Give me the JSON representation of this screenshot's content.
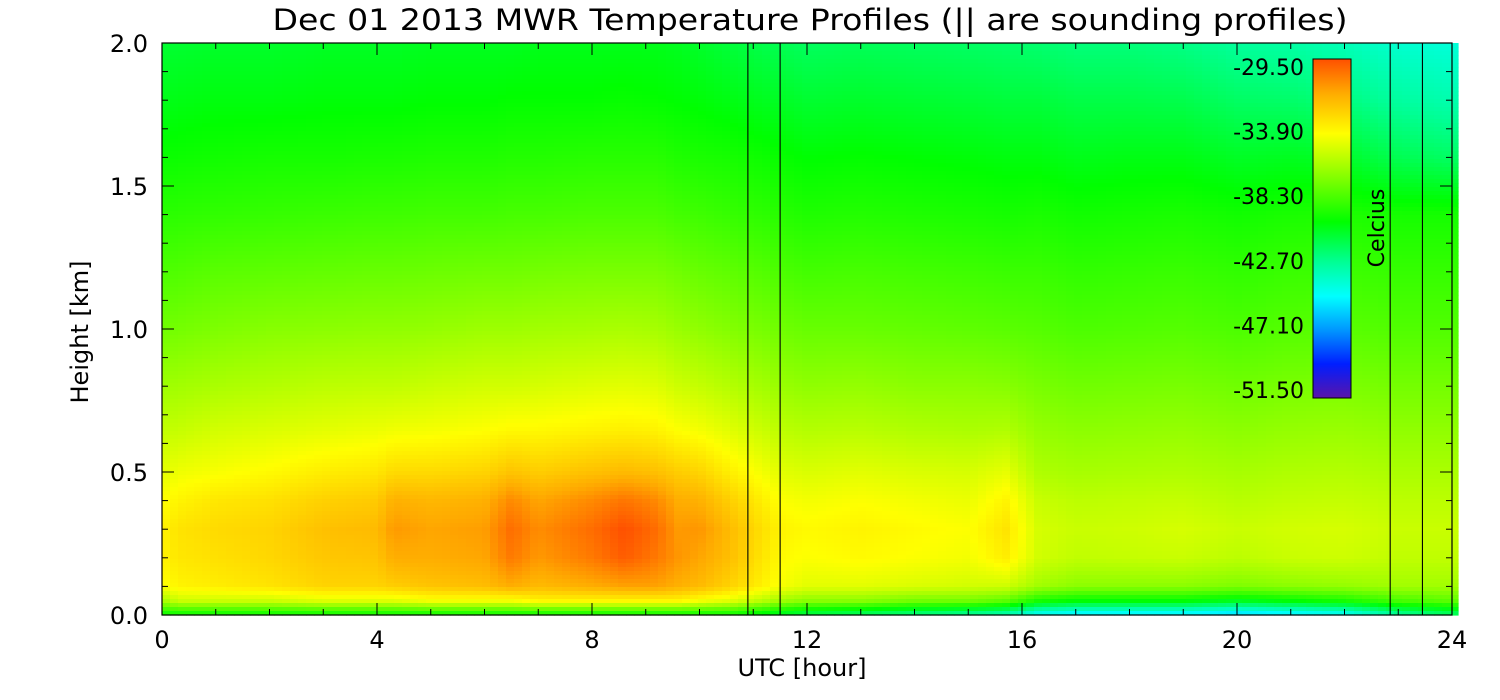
{
  "chart_data": {
    "type": "heatmap",
    "title": "Dec 01 2013 MWR Temperature Profiles (|| are sounding profiles)",
    "xlabel": "UTC [hour]",
    "ylabel": "Height [km]",
    "xlim": [
      0,
      24
    ],
    "ylim": [
      0,
      2.0
    ],
    "x_ticks": [
      "0",
      "4",
      "8",
      "12",
      "16",
      "20",
      "24"
    ],
    "y_ticks": [
      "0.0",
      "0.5",
      "1.0",
      "1.5",
      "2.0"
    ],
    "colorbar": {
      "label": "Celcius",
      "range": [
        -51.5,
        -29.5
      ],
      "ticks": [
        "-29.50",
        "-33.90",
        "-38.30",
        "-42.70",
        "-47.10",
        "-51.50"
      ]
    },
    "sounding_profiles_utc": [
      10.9,
      11.5,
      22.85,
      23.45
    ],
    "temperature_grid": {
      "x": [
        0,
        0.3,
        1,
        2,
        3,
        4,
        4.3,
        5,
        6,
        6.5,
        7,
        8,
        8.6,
        9.2,
        9.6,
        10,
        10.6,
        11.5,
        12,
        13,
        14,
        15,
        15.7,
        16.3,
        17,
        18,
        19,
        20,
        21,
        22,
        23,
        24
      ],
      "y": [
        0,
        0.05,
        0.1,
        0.2,
        0.3,
        0.4,
        0.5,
        0.65,
        0.8,
        1.0,
        1.2,
        1.4,
        1.6,
        1.8,
        2.0
      ],
      "z": [
        [
          -40.0,
          -40.0,
          -40.0,
          -40.0,
          -40.0,
          -40.0,
          -40.0,
          -40.0,
          -40.0,
          -40.0,
          -40.0,
          -40.0,
          -40.0,
          -40.0,
          -40.0,
          -40.0,
          -40.0,
          -41.0,
          -41.5,
          -42.0,
          -42.5,
          -43.0,
          -43.5,
          -45.0,
          -45.5,
          -45.5,
          -45.5,
          -46.0,
          -45.5,
          -45.0,
          -43.0,
          -42.0
        ],
        [
          -36.5,
          -35.5,
          -35.5,
          -35.5,
          -35.0,
          -35.0,
          -35.0,
          -34.5,
          -34.5,
          -34.5,
          -34.0,
          -34.0,
          -34.0,
          -34.0,
          -34.0,
          -34.5,
          -35.0,
          -36.5,
          -37.0,
          -37.0,
          -37.5,
          -37.5,
          -38.0,
          -39.5,
          -40.0,
          -40.0,
          -40.0,
          -40.5,
          -40.0,
          -39.5,
          -38.5,
          -38.0
        ],
        [
          -34.5,
          -34.0,
          -33.8,
          -33.5,
          -33.0,
          -33.0,
          -32.8,
          -32.5,
          -32.3,
          -31.8,
          -32.2,
          -31.8,
          -31.5,
          -31.5,
          -31.9,
          -32.2,
          -33.0,
          -34.5,
          -35.0,
          -35.0,
          -35.2,
          -35.4,
          -35.5,
          -36.5,
          -37.0,
          -37.0,
          -37.0,
          -37.3,
          -37.0,
          -36.8,
          -36.5,
          -36.5
        ],
        [
          -34.0,
          -33.6,
          -33.4,
          -33.1,
          -32.6,
          -32.5,
          -31.8,
          -31.8,
          -31.6,
          -30.5,
          -31.3,
          -30.5,
          -29.8,
          -30.5,
          -31.2,
          -31.6,
          -32.4,
          -34.2,
          -34.4,
          -34.2,
          -34.4,
          -34.6,
          -33.8,
          -35.4,
          -35.8,
          -35.7,
          -35.6,
          -35.9,
          -35.6,
          -35.5,
          -35.8,
          -35.8
        ],
        [
          -34.0,
          -33.5,
          -33.2,
          -33.0,
          -32.4,
          -32.2,
          -31.3,
          -31.6,
          -31.4,
          -30.2,
          -31.0,
          -30.2,
          -29.5,
          -30.2,
          -31.3,
          -31.2,
          -32.3,
          -34.0,
          -34.2,
          -34.0,
          -34.2,
          -34.4,
          -33.5,
          -35.3,
          -35.6,
          -35.5,
          -35.3,
          -35.6,
          -35.4,
          -35.3,
          -35.6,
          -35.6
        ],
        [
          -34.4,
          -34.0,
          -33.6,
          -33.4,
          -32.9,
          -32.7,
          -31.9,
          -32.1,
          -31.9,
          -30.9,
          -31.6,
          -30.9,
          -30.4,
          -30.9,
          -31.8,
          -31.9,
          -32.9,
          -34.4,
          -34.6,
          -34.4,
          -34.6,
          -34.8,
          -34.0,
          -35.6,
          -35.9,
          -35.8,
          -35.7,
          -36.0,
          -35.8,
          -35.7,
          -35.9,
          -35.9
        ],
        [
          -35.0,
          -34.7,
          -34.5,
          -34.2,
          -33.8,
          -33.6,
          -33.2,
          -33.2,
          -33.0,
          -32.5,
          -32.8,
          -32.4,
          -32.2,
          -32.4,
          -32.8,
          -33.0,
          -33.9,
          -35.0,
          -35.2,
          -35.0,
          -35.2,
          -35.3,
          -34.9,
          -36.2,
          -36.4,
          -36.3,
          -36.2,
          -36.4,
          -36.2,
          -36.1,
          -36.3,
          -36.3
        ],
        [
          -35.8,
          -35.7,
          -35.4,
          -35.2,
          -35.0,
          -34.8,
          -34.7,
          -34.6,
          -34.4,
          -34.2,
          -34.2,
          -34.0,
          -33.9,
          -34.0,
          -34.4,
          -34.6,
          -35.1,
          -35.9,
          -36.1,
          -36.0,
          -36.2,
          -36.3,
          -36.2,
          -36.8,
          -37.0,
          -36.9,
          -36.8,
          -37.0,
          -36.8,
          -36.7,
          -36.9,
          -36.9
        ],
        [
          -36.6,
          -36.5,
          -36.3,
          -36.1,
          -35.9,
          -35.8,
          -35.8,
          -35.6,
          -35.4,
          -35.4,
          -35.3,
          -35.1,
          -35.0,
          -35.1,
          -35.5,
          -35.7,
          -36.1,
          -36.7,
          -36.9,
          -36.8,
          -37.0,
          -37.0,
          -37.1,
          -37.4,
          -37.6,
          -37.5,
          -37.4,
          -37.6,
          -37.4,
          -37.3,
          -37.5,
          -37.5
        ],
        [
          -37.6,
          -37.5,
          -37.3,
          -37.1,
          -37.0,
          -36.9,
          -36.9,
          -36.8,
          -36.6,
          -36.6,
          -36.5,
          -36.4,
          -36.3,
          -36.4,
          -36.7,
          -36.9,
          -37.2,
          -37.6,
          -37.8,
          -37.8,
          -37.9,
          -38.0,
          -38.1,
          -38.2,
          -38.4,
          -38.3,
          -38.2,
          -38.4,
          -38.2,
          -38.1,
          -38.3,
          -38.3
        ],
        [
          -38.4,
          -38.3,
          -38.1,
          -38.0,
          -37.9,
          -37.8,
          -37.8,
          -37.7,
          -37.6,
          -37.6,
          -37.5,
          -37.4,
          -37.4,
          -37.4,
          -37.6,
          -37.8,
          -38.0,
          -38.4,
          -38.6,
          -38.5,
          -38.6,
          -38.7,
          -38.8,
          -38.8,
          -39.0,
          -38.9,
          -38.8,
          -39.0,
          -38.8,
          -38.7,
          -38.9,
          -38.9
        ],
        [
          -39.2,
          -39.1,
          -39.0,
          -38.9,
          -38.8,
          -38.7,
          -38.7,
          -38.6,
          -38.6,
          -38.5,
          -38.5,
          -38.4,
          -38.4,
          -38.4,
          -38.6,
          -38.7,
          -38.9,
          -39.2,
          -39.4,
          -39.3,
          -39.4,
          -39.5,
          -39.6,
          -39.5,
          -39.7,
          -39.6,
          -39.5,
          -39.7,
          -39.5,
          -39.4,
          -39.6,
          -39.6
        ],
        [
          -39.9,
          -39.8,
          -39.7,
          -39.6,
          -39.6,
          -39.5,
          -39.5,
          -39.4,
          -39.4,
          -39.3,
          -39.3,
          -39.2,
          -39.2,
          -39.2,
          -39.4,
          -39.5,
          -39.6,
          -39.9,
          -40.1,
          -40.0,
          -40.1,
          -40.2,
          -40.3,
          -40.3,
          -40.5,
          -40.4,
          -40.4,
          -40.7,
          -40.6,
          -40.8,
          -41.5,
          -41.8
        ],
        [
          -40.5,
          -40.4,
          -40.3,
          -40.3,
          -40.2,
          -40.2,
          -40.2,
          -40.1,
          -40.1,
          -40.0,
          -40.0,
          -40.0,
          -39.9,
          -40.0,
          -40.1,
          -40.2,
          -40.4,
          -40.7,
          -40.9,
          -40.8,
          -40.9,
          -41.0,
          -41.1,
          -41.1,
          -41.3,
          -41.3,
          -41.4,
          -41.8,
          -41.9,
          -42.3,
          -42.9,
          -43.2
        ],
        [
          -40.9,
          -40.9,
          -40.8,
          -40.8,
          -40.7,
          -40.7,
          -40.7,
          -40.6,
          -40.6,
          -40.6,
          -40.5,
          -40.5,
          -40.5,
          -40.5,
          -40.6,
          -40.8,
          -41.1,
          -41.5,
          -41.7,
          -41.6,
          -41.7,
          -41.8,
          -41.9,
          -42.0,
          -42.2,
          -42.2,
          -42.4,
          -42.8,
          -43.0,
          -43.4,
          -43.9,
          -44.1
        ]
      ]
    }
  }
}
